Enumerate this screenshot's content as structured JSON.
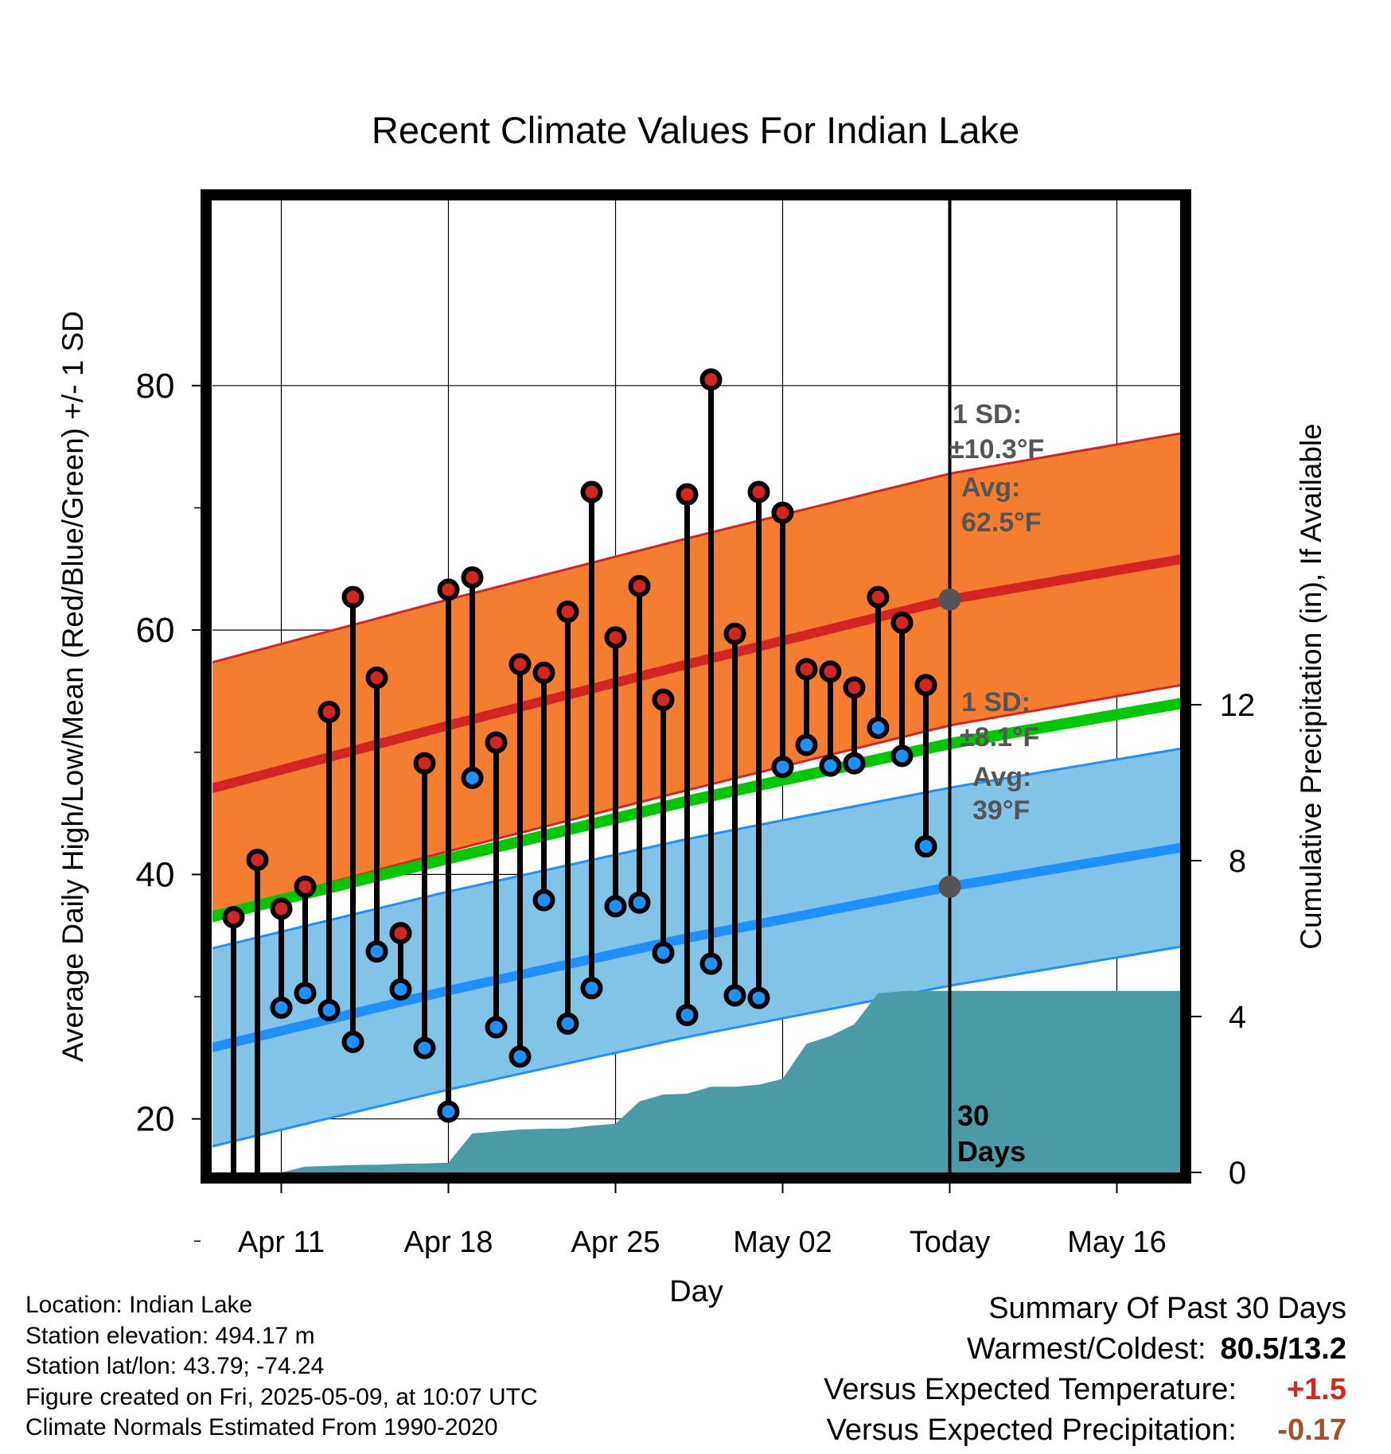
{
  "chart_data": {
    "type": "line",
    "title": "Recent Climate Values For Indian Lake",
    "xlabel": "Day",
    "ylabel": "Average Daily High/Low/Mean (Red/Blue/Green) +/- 1 SD",
    "y2label": "Cumulative Precipitation (in), If Available",
    "x_ticks": [
      {
        "label": "Apr 11",
        "day": 3
      },
      {
        "label": "Apr 18",
        "day": 10
      },
      {
        "label": "Apr 25",
        "day": 17
      },
      {
        "label": "May 02",
        "day": 24
      },
      {
        "label": "Today",
        "day": 31
      },
      {
        "label": "May 16",
        "day": 38
      }
    ],
    "xlim": [
      0,
      40.7
    ],
    "ylim": [
      5,
      87
    ],
    "y_ticks": [
      20,
      40,
      60,
      80
    ],
    "y2lim": [
      0,
      28
    ],
    "y2_ticks": [
      0,
      4,
      8,
      12
    ],
    "today_day": 31,
    "today_label": "30 Days",
    "normals": {
      "high_mean": {
        "x": [
          0,
          10,
          20,
          31,
          40.7
        ],
        "values": [
          47,
          52.2,
          57.2,
          62.5,
          65.8
        ]
      },
      "high_sd": 10.3,
      "low_mean": {
        "x": [
          0,
          10,
          20,
          31,
          40.7
        ],
        "values": [
          25.8,
          30.5,
          34.8,
          39,
          42.2
        ]
      },
      "low_sd": 8.1,
      "mean": {
        "x": [
          0,
          10,
          20,
          31,
          40.7
        ],
        "values": [
          36.5,
          41.3,
          46,
          50.7,
          54
        ]
      }
    },
    "annotations": {
      "high": {
        "sd_label": "1 SD:",
        "sd_value": "±10.3°F",
        "avg_label": "Avg:",
        "avg_value": "62.5°F",
        "marker_value": 62.5
      },
      "low": {
        "sd_label": "1 SD:",
        "sd_value": "±8.1°F",
        "avg_label": "Avg:",
        "avg_value": "39°F",
        "marker_value": 39
      }
    },
    "observations": {
      "days": [
        1,
        2,
        3,
        4,
        5,
        6,
        7,
        8,
        9,
        10,
        11,
        12,
        13,
        14,
        15,
        16,
        17,
        18,
        19,
        20,
        21,
        22,
        23,
        24,
        25,
        26,
        27,
        28,
        29,
        30
      ],
      "highs": [
        36.5,
        41.2,
        37.2,
        39.0,
        53.3,
        62.7,
        56.1,
        35.2,
        49.1,
        63.3,
        64.3,
        50.8,
        57.2,
        56.5,
        61.5,
        71.3,
        59.4,
        63.6,
        54.3,
        71.1,
        80.5,
        59.7,
        71.3,
        69.6,
        56.8,
        56.6,
        55.3,
        62.7,
        60.6,
        55.5
      ],
      "lows": [
        14.7,
        13.2,
        29.1,
        30.3,
        28.9,
        26.3,
        33.7,
        30.6,
        25.8,
        20.6,
        47.9,
        27.5,
        25.1,
        37.9,
        27.8,
        30.7,
        37.4,
        37.7,
        33.6,
        28.5,
        32.7,
        30.1,
        29.9,
        48.8,
        50.6,
        48.9,
        49.1,
        52.0,
        49.7,
        42.3
      ]
    },
    "precip": {
      "x": [
        0,
        3,
        4,
        5,
        6,
        7,
        8,
        9,
        10,
        11,
        12,
        13,
        14,
        15,
        16,
        17,
        18,
        19,
        20,
        21,
        22,
        23,
        24,
        25,
        26,
        27,
        28,
        29,
        30,
        31,
        40.7
      ],
      "values": [
        0,
        0,
        0.15,
        0.17,
        0.19,
        0.2,
        0.22,
        0.23,
        0.25,
        1.0,
        1.05,
        1.1,
        1.12,
        1.13,
        1.2,
        1.25,
        1.82,
        2.0,
        2.02,
        2.2,
        2.2,
        2.25,
        2.4,
        3.3,
        3.5,
        3.8,
        4.6,
        4.65,
        4.66,
        4.66,
        4.66
      ]
    },
    "colors": {
      "high_band": "#f47d2f",
      "high_edge": "#d42525",
      "high_mean_line": "#d42525",
      "low_band": "#82c3e8",
      "low_edge": "#1e90ff",
      "low_mean_line": "#1e90ff",
      "mean_line": "#00c800",
      "precip": "#4a9ba6",
      "high_dot": "#d42525",
      "low_dot": "#1e90ff",
      "annotation": "#555555"
    }
  },
  "location": {
    "location_line": "Location: Indian Lake",
    "elevation_line": "Station elevation: 494.17 m",
    "latlon_line": "Station lat/lon: 43.79; -74.24",
    "created_line": "Figure created on Fri, 2025-05-09, at 10:07 UTC",
    "normals_line": "Climate Normals Estimated From 1990-2020"
  },
  "summary": {
    "heading": "Summary Of Past 30 Days",
    "warm_cold_label": "Warmest/Coldest:",
    "warm_cold_value": "80.5/13.2",
    "temp_label": "Versus Expected Temperature:",
    "temp_value": "+1.5",
    "temp_color": "#d42525",
    "precip_label": "Versus Expected Precipitation:",
    "precip_value": "-0.17",
    "precip_color": "#a0522d"
  }
}
